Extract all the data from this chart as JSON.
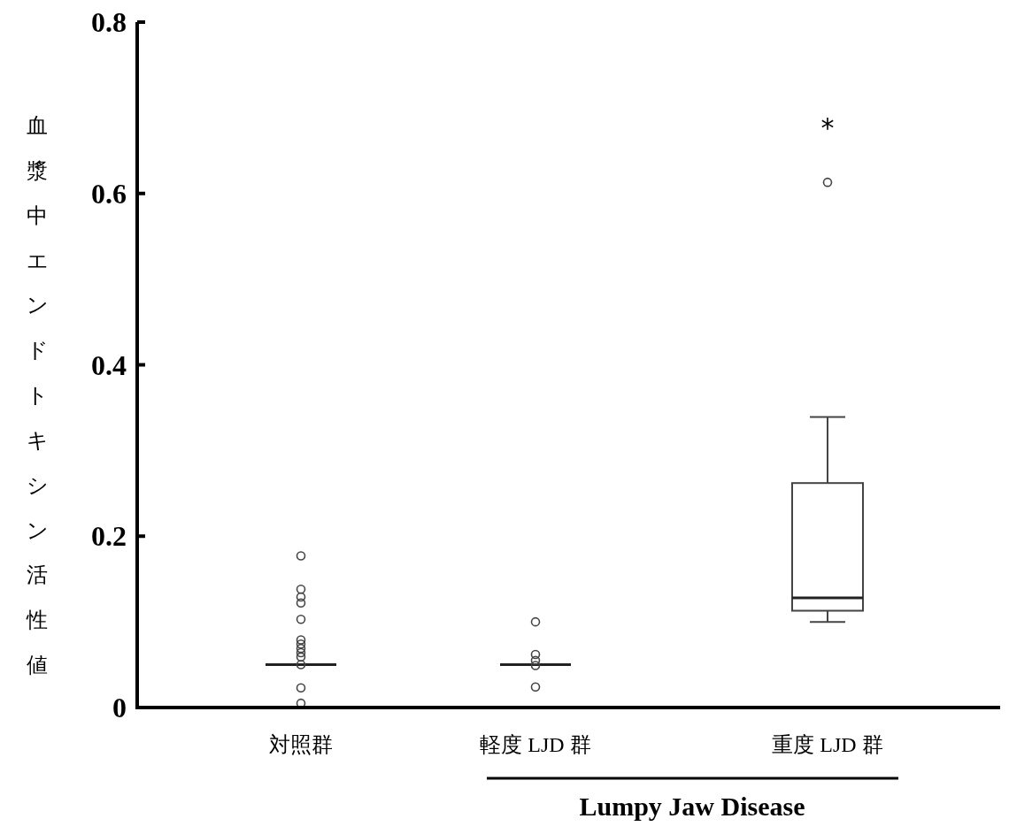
{
  "chart_data": {
    "type": "box",
    "ylabel": "血漿中エンドトキシン活性値",
    "categories": [
      "対照群",
      "軽度 LJD 群",
      "重度 LJD 群"
    ],
    "boxes": [
      {
        "low": 0.05,
        "q1": 0.05,
        "median": 0.05,
        "q3": 0.05,
        "high": 0.05,
        "outliers": [
          0.177,
          0.138,
          0.129,
          0.122,
          0.103,
          0.079,
          0.074,
          0.069,
          0.064,
          0.059,
          0.05,
          0.023,
          0.005
        ]
      },
      {
        "low": 0.05,
        "q1": 0.05,
        "median": 0.05,
        "q3": 0.05,
        "high": 0.05,
        "outliers": [
          0.1,
          0.062,
          0.055,
          0.049,
          0.024
        ]
      },
      {
        "low": 0.1,
        "q1": 0.113,
        "median": 0.128,
        "q3": 0.262,
        "high": 0.339,
        "outliers": [
          0.613
        ]
      }
    ],
    "ylim": [
      0,
      0.8
    ],
    "yticks": [
      0,
      0.2,
      0.4,
      0.6,
      0.8
    ],
    "annotations": [
      "*",
      "Lumpy Jaw Disease"
    ]
  }
}
